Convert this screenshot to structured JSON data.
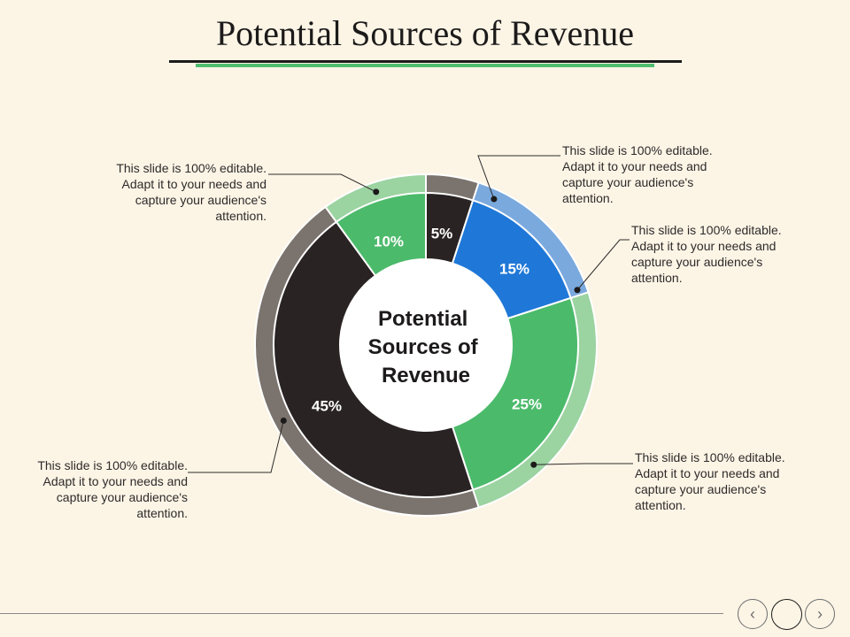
{
  "slide": {
    "title": "Potential Sources of Revenue",
    "center_label": [
      "Potential",
      "Sources of",
      "Revenue"
    ]
  },
  "chart_data": {
    "type": "pie",
    "title": "Potential Sources of Revenue",
    "slices": [
      {
        "label": "5%",
        "value": 5,
        "color": "#2a2323",
        "outer_color": "#7b736d"
      },
      {
        "label": "15%",
        "value": 15,
        "color": "#1f78d8",
        "outer_color": "#7aa9de"
      },
      {
        "label": "25%",
        "value": 25,
        "color": "#4cba6b",
        "outer_color": "#9bd3a1"
      },
      {
        "label": "45%",
        "value": 45,
        "color": "#2a2323",
        "outer_color": "#7b736d"
      },
      {
        "label": "10%",
        "value": 10,
        "color": "#4cba6b",
        "outer_color": "#9bd3a1"
      }
    ],
    "annotations": [
      "This slide is 100% editable. Adapt it to your needs and capture your audience's attention.",
      "This slide is 100% editable. Adapt it to your needs and capture your audience's attention.",
      "This slide is 100% editable. Adapt it to your needs and capture your audience's attention.",
      "This slide is 100% editable. Adapt it to your needs and capture your audience's attention.",
      "This slide is 100% editable. Adapt it to your needs and capture your audience's attention."
    ]
  },
  "callouts": [
    "This slide is 100% editable. Adapt it to your needs and capture your audience's attention.",
    "This slide is 100% editable. Adapt it to your needs and capture your audience's attention.",
    "This slide is 100% editable. Adapt it to your needs and capture your audience's attention.",
    "This slide is 100% editable. Adapt it to your needs and capture your audience's attention.",
    "This slide is 100% editable. Adapt it to your needs and capture your audience's attention."
  ],
  "nav": {
    "prev_icon": "chevron-left-icon",
    "home_icon": "circle-icon",
    "next_icon": "chevron-right-icon",
    "prev_glyph": "‹",
    "next_glyph": "›"
  }
}
